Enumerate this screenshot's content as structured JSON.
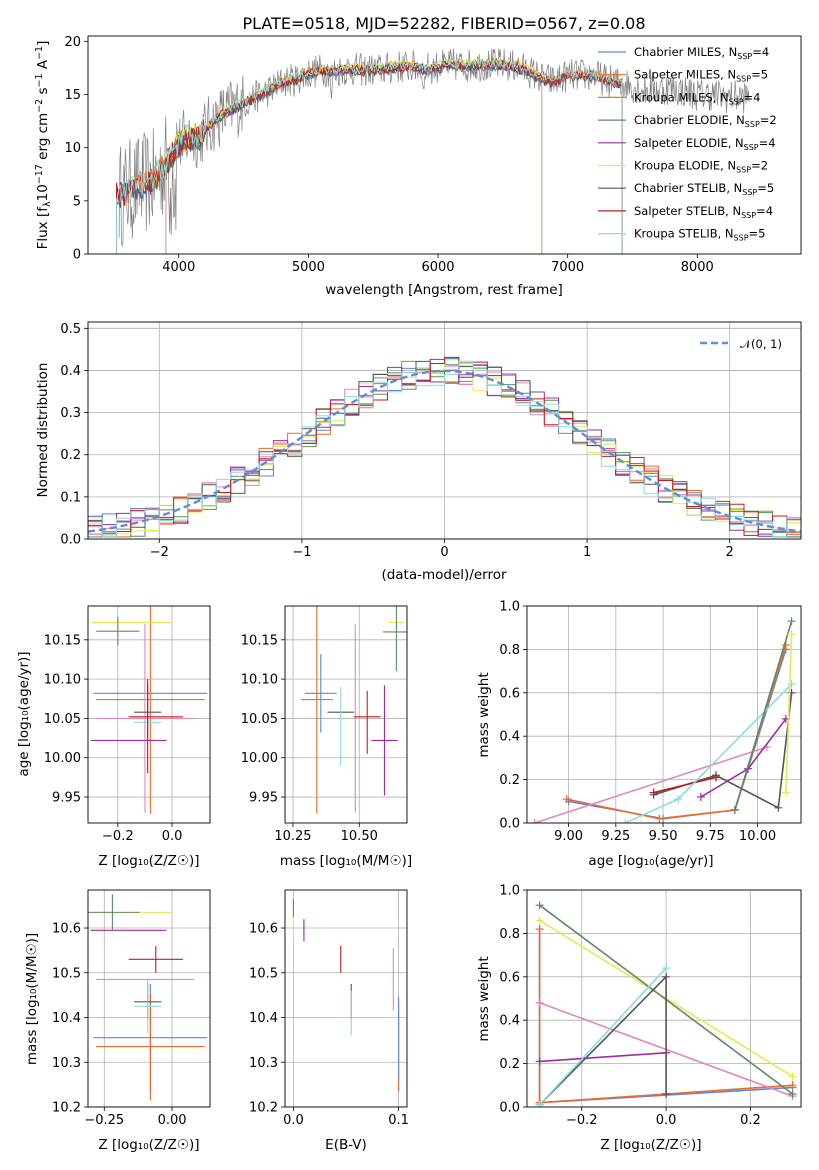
{
  "colors": {
    "chabrier_miles": "#5b87d9",
    "salpeter_miles": "#ee6a28",
    "kroupa_miles": "#d6862a",
    "chabrier_elodie": "#5e8c62",
    "salpeter_elodie": "#9b2ca8",
    "kroupa_elodie": "#e2ec4f",
    "chabrier_stelib": "#555555",
    "salpeter_stelib": "#c41b1b",
    "kroupa_stelib": "#8adbe0",
    "pink": "#e487bf",
    "lime": "#b4de3c",
    "grey_spectrum": "#808080",
    "normal_curve": "#5b8fd9"
  },
  "chart_data": [
    {
      "type": "line",
      "title": "PLATE=0518, MJD=52282, FIBERID=0567, z=0.08",
      "xlabel": "wavelength [Angstrom, rest frame]",
      "ylabel": "Flux [f$_\\lambda$10$^{-17}$ erg cm$^{-2}$ s$^{-1}$ A$^{-1}$]",
      "ylabel_parts": [
        "Flux [f",
        "λ",
        "10",
        "−17",
        " erg cm",
        "−2",
        " s",
        "−1",
        " A",
        "−1",
        "]"
      ],
      "xlim": [
        3300,
        8800
      ],
      "ylim": [
        0,
        20.5
      ],
      "xticks": [
        "4000",
        "5000",
        "6000",
        "7000",
        "8000"
      ],
      "yticks": [
        "0",
        "5",
        "10",
        "15",
        "20"
      ],
      "grid": false,
      "legend_position": "top-right",
      "series_labels": [
        {
          "base": "Chabrier MILES, N",
          "sub": "SSP",
          "val": "=4"
        },
        {
          "base": "Salpeter MILES, N",
          "sub": "SSP",
          "val": "=5"
        },
        {
          "base": "Kroupa MILES, N",
          "sub": "SSP",
          "val": "=4"
        },
        {
          "base": "Chabrier ELODIE, N",
          "sub": "SSP",
          "val": "=2"
        },
        {
          "base": "Salpeter ELODIE, N",
          "sub": "SSP",
          "val": "=4"
        },
        {
          "base": "Kroupa ELODIE, N",
          "sub": "SSP",
          "val": "=2"
        },
        {
          "base": "Chabrier STELIB, N",
          "sub": "SSP",
          "val": "=5"
        },
        {
          "base": "Salpeter STELIB, N",
          "sub": "SSP",
          "val": "=4"
        },
        {
          "base": "Kroupa STELIB, N",
          "sub": "SSP",
          "val": "=5"
        }
      ],
      "spectrum_x": [
        3520,
        3600,
        3700,
        3800,
        3900,
        3980,
        4050,
        4150,
        4300,
        4400,
        4500,
        4600,
        4700,
        4800,
        4900,
        5000,
        5100,
        5200,
        5300,
        5400,
        5500,
        5600,
        5700,
        5800,
        5900,
        6000,
        6100,
        6200,
        6300,
        6400,
        6500,
        6600,
        6700,
        6800,
        6900,
        7000,
        7100,
        7200,
        7300,
        7400,
        7500,
        7600,
        7700,
        7800,
        7900,
        8000,
        8100,
        8200,
        8300,
        8400
      ],
      "spectrum_y": [
        5.5,
        5.8,
        6.5,
        6.8,
        8.5,
        10.0,
        10.8,
        11.0,
        12.8,
        13.6,
        14.2,
        14.8,
        15.4,
        16.2,
        16.4,
        17.0,
        17.3,
        17.2,
        17.4,
        17.3,
        17.3,
        17.4,
        17.6,
        17.6,
        17.4,
        17.6,
        17.8,
        17.7,
        17.8,
        17.8,
        17.8,
        17.6,
        17.2,
        16.5,
        16.2,
        16.8,
        16.8,
        16.8,
        16.3,
        16.1,
        15.8,
        15.4,
        15.5,
        15.6,
        15.3,
        15.0,
        15.0,
        14.8,
        14.8,
        14.7
      ]
    },
    {
      "type": "histogram",
      "xlabel": "(data-model)/error",
      "ylabel": "Normed distribution",
      "xlim": [
        -2.5,
        2.5
      ],
      "ylim": [
        0,
        0.515
      ],
      "xticks": [
        "−2",
        "−1",
        "0",
        "1",
        "2"
      ],
      "yticks": [
        "0.0",
        "0.1",
        "0.2",
        "0.3",
        "0.4",
        "0.5"
      ],
      "grid": true,
      "legend_position": "top-right",
      "legend_label": "𝒩(0, 1)",
      "bin_width": 0.1
    },
    {
      "type": "scatter",
      "xlabel": "Z [log₁₀(Z/Z☉)]",
      "ylabel": "age  [log₁₀(age/yr)]",
      "xlim": [
        -0.31,
        0.14
      ],
      "ylim": [
        9.917,
        10.193
      ],
      "xticks": [
        "−0.2",
        "0.0"
      ],
      "yticks": [
        "9.95",
        "10.00",
        "10.05",
        "10.10",
        "10.15"
      ],
      "grid": true,
      "points": [
        {
          "x": -0.08,
          "y": 10.082,
          "xerr": 0.21,
          "yerr": 0.0,
          "color": "chabrier_miles"
        },
        {
          "x": -0.08,
          "y": 10.074,
          "xerr": 0.2,
          "yerr": 0.145,
          "color": "salpeter_miles"
        },
        {
          "x": -0.1,
          "y": 10.05,
          "xerr": 0.18,
          "yerr": 0.12,
          "color": "pink"
        },
        {
          "x": -0.06,
          "y": 10.052,
          "xerr": 0.1,
          "yerr": 0.0,
          "color": "salpeter_stelib"
        },
        {
          "x": -0.16,
          "y": 10.022,
          "xerr": 0.14,
          "yerr": 0.0,
          "color": "salpeter_elodie"
        },
        {
          "x": -0.15,
          "y": 10.172,
          "xerr": 0.15,
          "yerr": 0.0,
          "color": "kroupa_elodie"
        },
        {
          "x": -0.2,
          "y": 10.161,
          "xerr": 0.08,
          "yerr": 0.018,
          "color": "chabrier_elodie"
        },
        {
          "x": -0.09,
          "y": 10.058,
          "xerr": 0.05,
          "yerr": 0.036,
          "color": "chabrier_stelib"
        },
        {
          "x": -0.09,
          "y": 10.045,
          "xerr": 0.05,
          "yerr": 0.0,
          "color": "kroupa_stelib"
        },
        {
          "x": -0.09,
          "y": 10.04,
          "xerr": 0.0,
          "yerr": 0.06,
          "color": "salpeter_stelib"
        }
      ]
    },
    {
      "type": "scatter",
      "xlabel": "mass [log₁₀(M/M☉)]",
      "xlim": [
        10.22,
        10.68
      ],
      "ylim": [
        9.917,
        10.193
      ],
      "xticks": [
        "10.25",
        "10.50"
      ],
      "yticks": [
        "9.95",
        "10.00",
        "10.05",
        "10.10",
        "10.15"
      ],
      "grid": true,
      "points": [
        {
          "x": 10.355,
          "y": 10.082,
          "xerr": 0.06,
          "yerr": 0.05,
          "color": "chabrier_miles"
        },
        {
          "x": 10.34,
          "y": 10.074,
          "xerr": 0.06,
          "yerr": 0.145,
          "color": "salpeter_miles"
        },
        {
          "x": 10.485,
          "y": 10.05,
          "xerr": 0.0,
          "yerr": 0.12,
          "color": "pink"
        },
        {
          "x": 10.53,
          "y": 10.052,
          "xerr": 0.05,
          "yerr": 0.0,
          "color": "salpeter_stelib"
        },
        {
          "x": 10.53,
          "y": 10.045,
          "xerr": 0.0,
          "yerr": 0.04,
          "color": "salpeter_stelib"
        },
        {
          "x": 10.595,
          "y": 10.022,
          "xerr": 0.05,
          "yerr": 0.07,
          "color": "salpeter_elodie"
        },
        {
          "x": 10.635,
          "y": 10.172,
          "xerr": 0.03,
          "yerr": 0.0,
          "color": "kroupa_elodie"
        },
        {
          "x": 10.64,
          "y": 10.16,
          "xerr": 0.05,
          "yerr": 0.05,
          "color": "chabrier_elodie"
        },
        {
          "x": 10.43,
          "y": 10.058,
          "xerr": 0.05,
          "yerr": 0.0,
          "color": "chabrier_stelib"
        },
        {
          "x": 10.43,
          "y": 10.04,
          "xerr": 0.0,
          "yerr": 0.05,
          "color": "kroupa_stelib"
        }
      ]
    },
    {
      "type": "line",
      "xlabel": "age  [log₁₀(age/yr)]",
      "ylabel": "mass weight",
      "xlim": [
        8.78,
        10.23
      ],
      "ylim": [
        0,
        1.0
      ],
      "xticks": [
        "9.00",
        "9.25",
        "9.50",
        "9.75",
        "10.00"
      ],
      "yticks": [
        "0.0",
        "0.2",
        "0.4",
        "0.6",
        "0.8",
        "1.0"
      ],
      "grid": true,
      "series": [
        {
          "color": "chabrier_miles",
          "x": [
            9.0,
            9.5,
            9.88,
            10.15
          ],
          "y": [
            0.1,
            0.02,
            0.06,
            0.8
          ]
        },
        {
          "color": "salpeter_miles",
          "x": [
            8.99,
            9.48,
            9.88,
            10.15
          ],
          "y": [
            0.11,
            0.02,
            0.06,
            0.82
          ]
        },
        {
          "color": "pink",
          "x": [
            8.82,
            10.05
          ],
          "y": [
            0.0,
            0.35
          ]
        },
        {
          "color": "salpeter_elodie",
          "x": [
            9.7,
            9.95,
            10.15
          ],
          "y": [
            0.12,
            0.25,
            0.48
          ]
        },
        {
          "color": "chabrier_stelib",
          "x": [
            9.45,
            9.78,
            10.11,
            10.18
          ],
          "y": [
            0.13,
            0.22,
            0.07,
            0.6
          ]
        },
        {
          "color": "salpeter_stelib",
          "x": [
            9.45,
            9.78
          ],
          "y": [
            0.14,
            0.21
          ]
        },
        {
          "color": "kroupa_stelib",
          "x": [
            9.3,
            9.58,
            10.18
          ],
          "y": [
            0.0,
            0.11,
            0.64
          ]
        },
        {
          "color": "chabrier_elodie",
          "x": [
            9.88,
            10.18
          ],
          "y": [
            0.06,
            0.93
          ]
        },
        {
          "color": "kroupa_elodie",
          "x": [
            10.15,
            10.18
          ],
          "y": [
            0.14,
            0.87
          ]
        }
      ]
    },
    {
      "type": "scatter",
      "xlabel": "Z [log₁₀(Z/Z☉)]",
      "ylabel": "mass [log₁₀(M/M☉)]",
      "xlim": [
        -0.31,
        0.14
      ],
      "ylim": [
        10.2,
        10.685
      ],
      "xticks": [
        "−0.25",
        "0.00"
      ],
      "yticks": [
        "10.2",
        "10.3",
        "10.4",
        "10.5",
        "10.6"
      ],
      "grid": true,
      "points": [
        {
          "x": -0.08,
          "y": 10.355,
          "xerr": 0.21,
          "yerr": 0.12,
          "color": "chabrier_miles"
        },
        {
          "x": -0.08,
          "y": 10.335,
          "xerr": 0.2,
          "yerr": 0.12,
          "color": "salpeter_miles"
        },
        {
          "x": -0.1,
          "y": 10.485,
          "xerr": 0.18,
          "yerr": 0.0,
          "color": "pink"
        },
        {
          "x": -0.06,
          "y": 10.53,
          "xerr": 0.1,
          "yerr": 0.03,
          "color": "salpeter_stelib"
        },
        {
          "x": -0.16,
          "y": 10.595,
          "xerr": 0.14,
          "yerr": 0.0,
          "color": "salpeter_elodie"
        },
        {
          "x": -0.15,
          "y": 10.635,
          "xerr": 0.15,
          "yerr": 0.0,
          "color": "kroupa_elodie"
        },
        {
          "x": -0.22,
          "y": 10.635,
          "xerr": 0.1,
          "yerr": 0.04,
          "color": "chabrier_elodie"
        },
        {
          "x": -0.09,
          "y": 10.435,
          "xerr": 0.05,
          "yerr": 0.04,
          "color": "chabrier_stelib"
        },
        {
          "x": -0.09,
          "y": 10.425,
          "xerr": 0.05,
          "yerr": 0.06,
          "color": "kroupa_stelib"
        }
      ]
    },
    {
      "type": "scatter",
      "xlabel": "E(B-V)",
      "xlim": [
        -0.008,
        0.108
      ],
      "ylim": [
        10.2,
        10.685
      ],
      "xticks": [
        "0.0",
        "0.1"
      ],
      "yticks": [
        "10.2",
        "10.3",
        "10.4",
        "10.5",
        "10.6"
      ],
      "grid": true,
      "points": [
        {
          "x": 0.0,
          "y": 10.62,
          "xerr": 0.0,
          "yerr": 0.04,
          "color": "kroupa_elodie"
        },
        {
          "x": 0.0,
          "y": 10.645,
          "xerr": 0.0,
          "yerr": 0.02,
          "color": "chabrier_elodie"
        },
        {
          "x": 0.01,
          "y": 10.595,
          "xerr": 0.0,
          "yerr": 0.025,
          "color": "salpeter_elodie"
        },
        {
          "x": 0.045,
          "y": 10.53,
          "xerr": 0.0,
          "yerr": 0.03,
          "color": "salpeter_stelib"
        },
        {
          "x": 0.055,
          "y": 10.435,
          "xerr": 0.0,
          "yerr": 0.04,
          "color": "chabrier_stelib"
        },
        {
          "x": 0.055,
          "y": 10.41,
          "xerr": 0.0,
          "yerr": 0.05,
          "color": "kroupa_stelib"
        },
        {
          "x": 0.095,
          "y": 10.485,
          "xerr": 0.0,
          "yerr": 0.07,
          "color": "pink"
        },
        {
          "x": 0.1,
          "y": 10.335,
          "xerr": 0.0,
          "yerr": 0.1,
          "color": "salpeter_miles"
        },
        {
          "x": 0.1,
          "y": 10.355,
          "xerr": 0.0,
          "yerr": 0.09,
          "color": "chabrier_miles"
        }
      ]
    },
    {
      "type": "line",
      "xlabel": "Z [log₁₀(Z/Z☉)]",
      "ylabel": "mass weight",
      "xlim": [
        -0.33,
        0.32
      ],
      "ylim": [
        0,
        1.0
      ],
      "xticks": [
        "−0.2",
        "0.0",
        "0.2"
      ],
      "yticks": [
        "0.0",
        "0.2",
        "0.4",
        "0.6",
        "0.8",
        "1.0"
      ],
      "grid": true,
      "series": [
        {
          "color": "chabrier_miles",
          "x": [
            -0.3,
            -0.3,
            -0.3,
            0.3
          ],
          "y": [
            0.82,
            0.21,
            0.02,
            0.09
          ]
        },
        {
          "color": "salpeter_miles",
          "x": [
            -0.3,
            -0.3,
            0.0,
            0.3
          ],
          "y": [
            0.82,
            0.02,
            0.06,
            0.1
          ]
        },
        {
          "color": "pink",
          "x": [
            -0.3,
            0.3
          ],
          "y": [
            0.48,
            0.05
          ]
        },
        {
          "color": "salpeter_elodie",
          "x": [
            -0.3,
            0.0
          ],
          "y": [
            0.21,
            0.25
          ]
        },
        {
          "color": "kroupa_elodie",
          "x": [
            -0.3,
            0.3
          ],
          "y": [
            0.86,
            0.14
          ]
        },
        {
          "color": "chabrier_elodie",
          "x": [
            -0.3,
            0.3
          ],
          "y": [
            0.93,
            0.06
          ]
        },
        {
          "color": "chabrier_stelib",
          "x": [
            -0.3,
            0.0,
            0.0
          ],
          "y": [
            0.01,
            0.6,
            0.06
          ]
        },
        {
          "color": "kroupa_stelib",
          "x": [
            -0.3,
            0.0
          ],
          "y": [
            0.01,
            0.64
          ]
        }
      ]
    }
  ]
}
